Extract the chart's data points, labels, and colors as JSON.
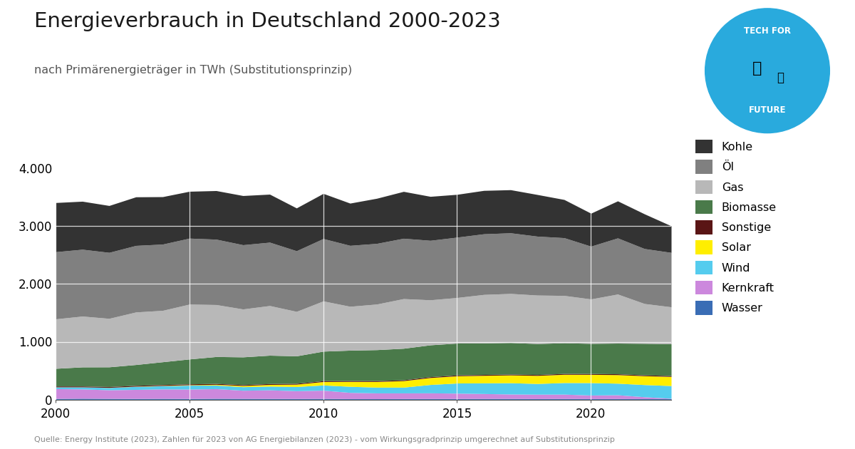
{
  "title": "Energieverbrauch in Deutschland 2000-2023",
  "subtitle": "nach Primärenergieträger in TWh (Substitutionsprinzip)",
  "source": "Quelle: Energy Institute (2023), Zahlen für 2023 von AG Energiebilanzen (2023) - vom Wirkungsgradprinzip umgerechnet auf Substitutionsprinzip",
  "years": [
    2000,
    2001,
    2002,
    2003,
    2004,
    2005,
    2006,
    2007,
    2008,
    2009,
    2010,
    2011,
    2012,
    2013,
    2014,
    2015,
    2016,
    2017,
    2018,
    2019,
    2020,
    2021,
    2022,
    2023
  ],
  "series": {
    "Wasser": [
      19,
      22,
      20,
      18,
      20,
      18,
      21,
      20,
      19,
      18,
      20,
      16,
      15,
      17,
      18,
      18,
      19,
      19,
      16,
      18,
      16,
      17,
      15,
      15
    ],
    "Kernkraft": [
      169,
      161,
      148,
      157,
      163,
      162,
      167,
      140,
      148,
      134,
      141,
      107,
      99,
      97,
      97,
      92,
      84,
      76,
      76,
      75,
      61,
      65,
      33,
      6
    ],
    "Wind": [
      30,
      35,
      40,
      52,
      55,
      68,
      62,
      62,
      65,
      73,
      90,
      105,
      100,
      100,
      145,
      175,
      185,
      195,
      185,
      200,
      215,
      200,
      210,
      220
    ],
    "Solar": [
      1,
      1,
      2,
      3,
      5,
      8,
      13,
      20,
      29,
      40,
      60,
      85,
      98,
      112,
      120,
      125,
      130,
      135,
      140,
      143,
      143,
      148,
      153,
      158
    ],
    "Sonstige": [
      15,
      15,
      15,
      15,
      15,
      15,
      15,
      15,
      15,
      15,
      15,
      15,
      15,
      15,
      15,
      15,
      15,
      15,
      15,
      15,
      15,
      15,
      15,
      15
    ],
    "Biomasse": [
      305,
      330,
      340,
      360,
      395,
      430,
      465,
      480,
      490,
      475,
      510,
      525,
      535,
      545,
      550,
      550,
      545,
      545,
      535,
      530,
      520,
      530,
      545,
      550
    ],
    "Gas": [
      855,
      878,
      838,
      908,
      888,
      948,
      898,
      828,
      858,
      768,
      868,
      758,
      788,
      858,
      778,
      788,
      838,
      848,
      838,
      818,
      768,
      848,
      688,
      638
    ],
    "Öl": [
      1160,
      1155,
      1140,
      1150,
      1145,
      1140,
      1130,
      1110,
      1095,
      1048,
      1078,
      1053,
      1048,
      1043,
      1028,
      1043,
      1048,
      1048,
      1018,
      998,
      912,
      970,
      950,
      940
    ],
    "Kohle": [
      850,
      830,
      810,
      840,
      820,
      810,
      840,
      850,
      830,
      740,
      780,
      730,
      780,
      810,
      760,
      740,
      750,
      745,
      720,
      660,
      570,
      640,
      600,
      460
    ]
  },
  "colors": {
    "Wasser": "#3a6db5",
    "Kernkraft": "#cc88dd",
    "Wind": "#55ccee",
    "Solar": "#ffee00",
    "Sonstige": "#5a1515",
    "Biomasse": "#4a7a4a",
    "Gas": "#b8b8b8",
    "Öl": "#808080",
    "Kohle": "#333333"
  },
  "stack_order": [
    "Wasser",
    "Kernkraft",
    "Wind",
    "Solar",
    "Sonstige",
    "Biomasse",
    "Gas",
    "Öl",
    "Kohle"
  ],
  "legend_order": [
    "Kohle",
    "Öl",
    "Gas",
    "Biomasse",
    "Sonstige",
    "Solar",
    "Wind",
    "Kernkraft",
    "Wasser"
  ],
  "ylim": [
    0,
    4500
  ],
  "yticks": [
    0,
    1000,
    2000,
    3000,
    4000
  ],
  "background_color": "#ffffff"
}
